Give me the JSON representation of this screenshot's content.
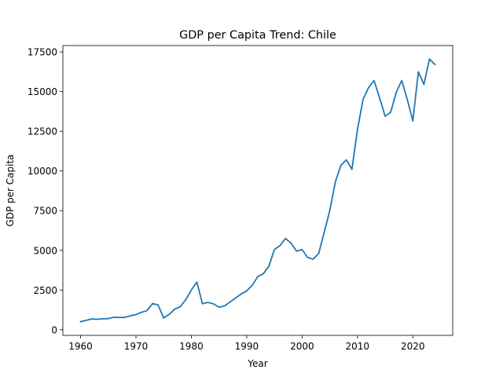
{
  "chart_data": {
    "type": "line",
    "title": "GDP per Capita Trend: Chile",
    "xlabel": "Year",
    "ylabel": "GDP per Capita",
    "xlim": [
      1956.8,
      2027.2
    ],
    "ylim": [
      -355,
      17900
    ],
    "grid": false,
    "x_ticks": [
      1960,
      1970,
      1980,
      1990,
      2000,
      2010,
      2020
    ],
    "x_tick_labels": [
      "1960",
      "1970",
      "1980",
      "1990",
      "2000",
      "2010",
      "2020"
    ],
    "y_ticks": [
      0,
      2500,
      5000,
      7500,
      10000,
      12500,
      15000,
      17500
    ],
    "y_tick_labels": [
      "0",
      "2500",
      "5000",
      "7500",
      "10000",
      "12500",
      "15000",
      "17500"
    ],
    "series": [
      {
        "color": "#1f77b4",
        "x": [
          1960,
          1961,
          1962,
          1963,
          1964,
          1965,
          1966,
          1967,
          1968,
          1969,
          1970,
          1971,
          1972,
          1973,
          1974,
          1975,
          1976,
          1977,
          1978,
          1979,
          1980,
          1981,
          1982,
          1983,
          1984,
          1985,
          1986,
          1987,
          1988,
          1989,
          1990,
          1991,
          1992,
          1993,
          1994,
          1995,
          1996,
          1997,
          1998,
          1999,
          2000,
          2001,
          2002,
          2003,
          2004,
          2005,
          2006,
          2007,
          2008,
          2009,
          2010,
          2011,
          2012,
          2013,
          2014,
          2015,
          2016,
          2017,
          2018,
          2019,
          2020,
          2021,
          2022,
          2023,
          2024
        ],
        "values": [
          510,
          590,
          680,
          660,
          690,
          700,
          790,
          770,
          780,
          880,
          950,
          1100,
          1200,
          1650,
          1560,
          740,
          970,
          1300,
          1450,
          1900,
          2500,
          3000,
          1640,
          1720,
          1630,
          1420,
          1500,
          1750,
          2000,
          2250,
          2450,
          2800,
          3350,
          3530,
          4000,
          5050,
          5300,
          5750,
          5450,
          4950,
          5050,
          4550,
          4450,
          4800,
          6150,
          7500,
          9300,
          10350,
          10700,
          10100,
          12600,
          14500,
          15250,
          15700,
          14600,
          13450,
          13700,
          14950,
          15700,
          14500,
          13150,
          16250,
          15450,
          17050,
          16700
        ]
      }
    ]
  }
}
